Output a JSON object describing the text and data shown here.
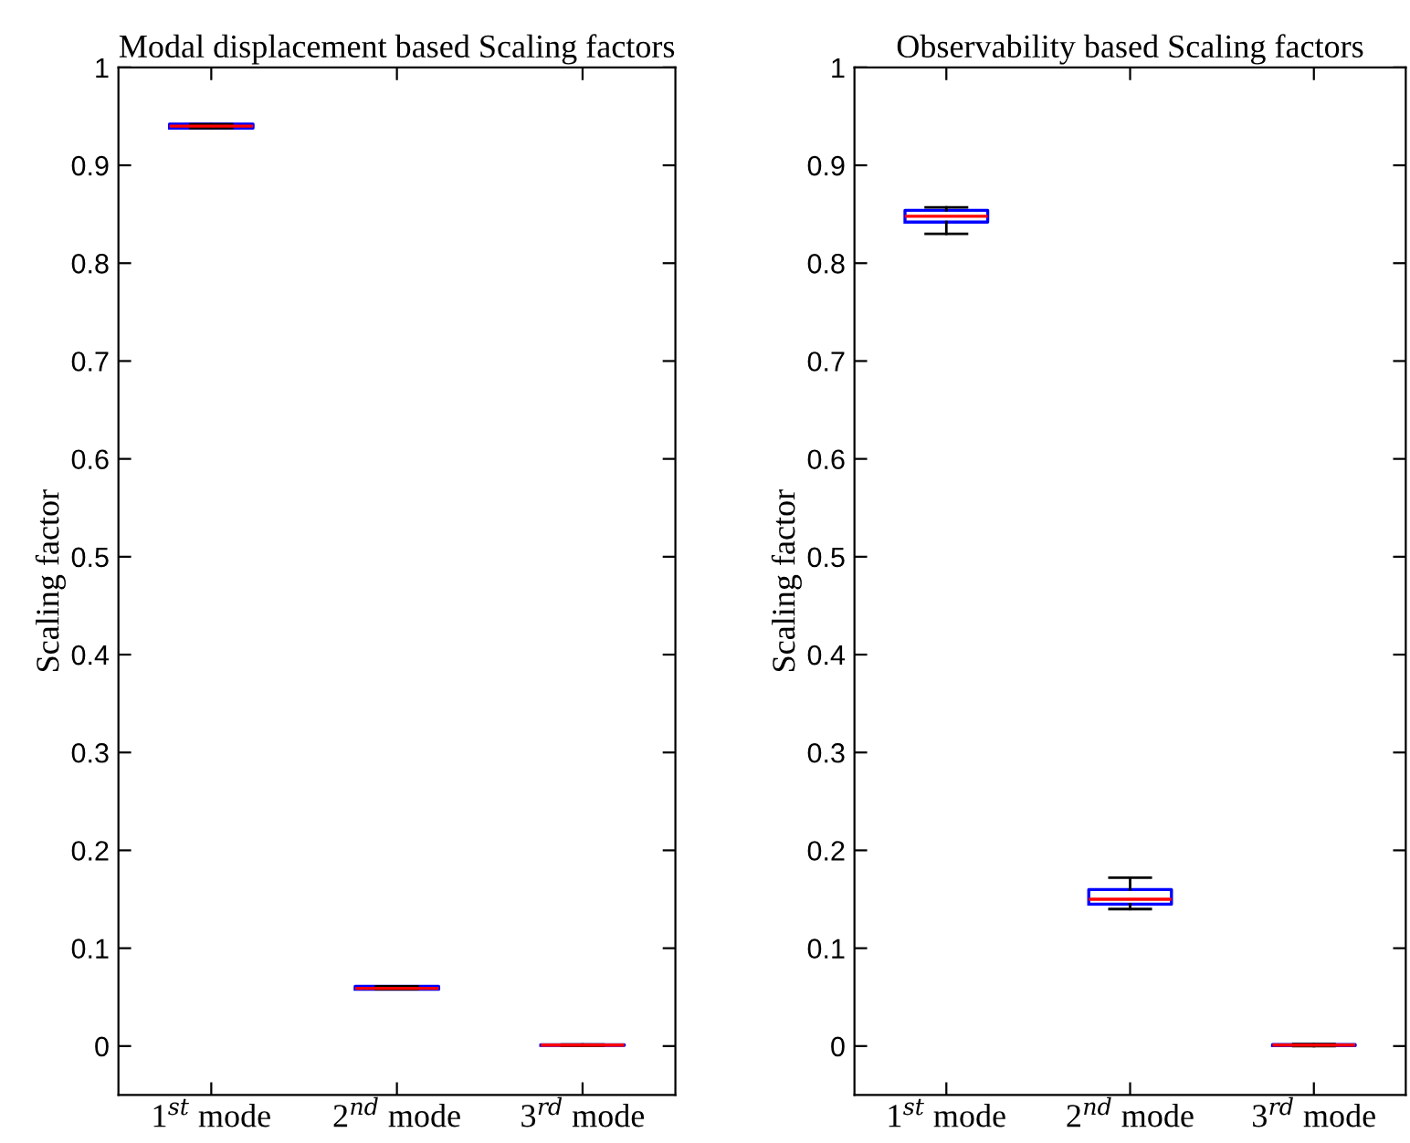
{
  "chart_data": [
    {
      "type": "box",
      "title": "Modal displacement based Scaling factors",
      "ylabel": "Scaling factor",
      "categories": [
        "1$^{st}$ mode",
        "2$^{nd}$ mode",
        "3$^{rd}$ mode"
      ],
      "ylim": [
        -0.05,
        1
      ],
      "yticks": [
        0,
        0.1,
        0.2,
        0.3,
        0.4,
        0.5,
        0.6,
        0.7,
        0.8,
        0.9,
        1
      ],
      "grid": false,
      "series": [
        {
          "color": "#0000ff",
          "boxes": [
            {
              "low": 0.938,
              "q1": 0.938,
              "median": 0.94,
              "q3": 0.942,
              "high": 0.942
            },
            {
              "low": 0.058,
              "q1": 0.058,
              "median": 0.059,
              "q3": 0.061,
              "high": 0.061
            },
            {
              "low": 0.0005,
              "q1": 0.0008,
              "median": 0.001,
              "q3": 0.0012,
              "high": 0.0015
            }
          ]
        }
      ]
    },
    {
      "type": "box",
      "title": "Observability based Scaling factors",
      "ylabel": "Scaling factor",
      "categories": [
        "1$^{st}$ mode",
        "2$^{nd}$ mode",
        "3$^{rd}$ mode"
      ],
      "ylim": [
        -0.05,
        1
      ],
      "yticks": [
        0,
        0.1,
        0.2,
        0.3,
        0.4,
        0.5,
        0.6,
        0.7,
        0.8,
        0.9,
        1
      ],
      "grid": false,
      "series": [
        {
          "color": "#0000ff",
          "boxes": [
            {
              "low": 0.83,
              "q1": 0.842,
              "median": 0.848,
              "q3": 0.854,
              "high": 0.857
            },
            {
              "low": 0.14,
              "q1": 0.145,
              "median": 0.15,
              "q3": 0.16,
              "high": 0.172
            },
            {
              "low": 0.0,
              "q1": 0.0005,
              "median": 0.001,
              "q3": 0.0015,
              "high": 0.002
            }
          ]
        }
      ]
    }
  ]
}
